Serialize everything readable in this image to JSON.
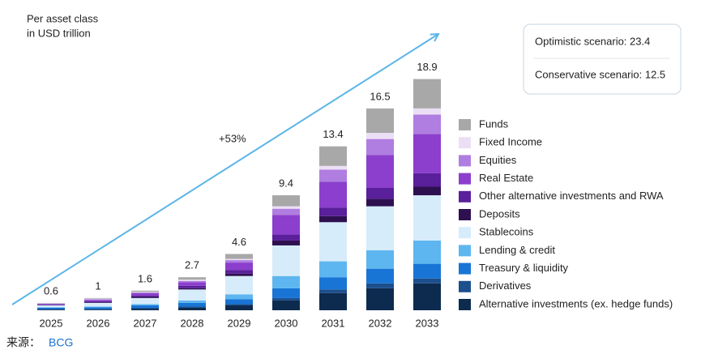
{
  "chart_data": {
    "type": "stacked_bar",
    "subtitle": [
      "Per asset class",
      "in USD trillion"
    ],
    "annotation": "+53%",
    "scenarios": [
      "Optimistic scenario: 23.4",
      "Conservative scenario: 12.5"
    ],
    "source_label": "来源：",
    "source": "BCG",
    "categories": [
      "2025",
      "2026",
      "2027",
      "2028",
      "2029",
      "2030",
      "2031",
      "2032",
      "2033"
    ],
    "totals": [
      0.6,
      1.0,
      1.6,
      2.7,
      4.6,
      9.4,
      13.4,
      16.5,
      18.9
    ],
    "ylim": [
      0,
      20
    ],
    "series": [
      {
        "name": "Alternative investments (ex. hedge funds)",
        "color": "#0d2b4e",
        "values": [
          0.05,
          0.05,
          0.1,
          0.2,
          0.4,
          0.8,
          1.4,
          1.8,
          2.2
        ]
      },
      {
        "name": "Derivatives",
        "color": "#1c4f8c",
        "values": [
          0.05,
          0.05,
          0.1,
          0.1,
          0.1,
          0.2,
          0.3,
          0.4,
          0.4
        ]
      },
      {
        "name": "Treasury & liquidity",
        "color": "#1875d6",
        "values": [
          0.1,
          0.15,
          0.2,
          0.3,
          0.4,
          0.8,
          1.0,
          1.2,
          1.2
        ]
      },
      {
        "name": "Lending & credit",
        "color": "#5db6ef",
        "values": [
          0.05,
          0.05,
          0.1,
          0.2,
          0.4,
          1.0,
          1.3,
          1.5,
          1.9
        ]
      },
      {
        "name": "Stablecoins",
        "color": "#d7ecfa",
        "values": [
          0.15,
          0.3,
          0.5,
          0.9,
          1.5,
          2.5,
          3.2,
          3.6,
          3.7
        ]
      },
      {
        "name": "Deposits",
        "color": "#2e1050",
        "values": [
          0.02,
          0.05,
          0.1,
          0.1,
          0.2,
          0.4,
          0.5,
          0.6,
          0.7
        ]
      },
      {
        "name": "Other alternative investments and RWA",
        "color": "#5a1f9a",
        "values": [
          0.05,
          0.1,
          0.1,
          0.2,
          0.3,
          0.5,
          0.7,
          0.9,
          1.1
        ]
      },
      {
        "name": "Real Estate",
        "color": "#8b3fcc",
        "values": [
          0.05,
          0.1,
          0.2,
          0.3,
          0.6,
          1.6,
          2.1,
          2.7,
          3.2
        ]
      },
      {
        "name": "Equities",
        "color": "#b07de0",
        "values": [
          0.03,
          0.05,
          0.05,
          0.1,
          0.2,
          0.5,
          1.0,
          1.3,
          1.6
        ]
      },
      {
        "name": "Fixed Income",
        "color": "#ecdff5",
        "values": [
          0.02,
          0.05,
          0.05,
          0.1,
          0.1,
          0.2,
          0.3,
          0.5,
          0.5
        ]
      },
      {
        "name": "Funds",
        "color": "#a8a8a8",
        "values": [
          0.03,
          0.05,
          0.1,
          0.2,
          0.4,
          0.9,
          1.6,
          2.0,
          2.4
        ]
      }
    ]
  }
}
